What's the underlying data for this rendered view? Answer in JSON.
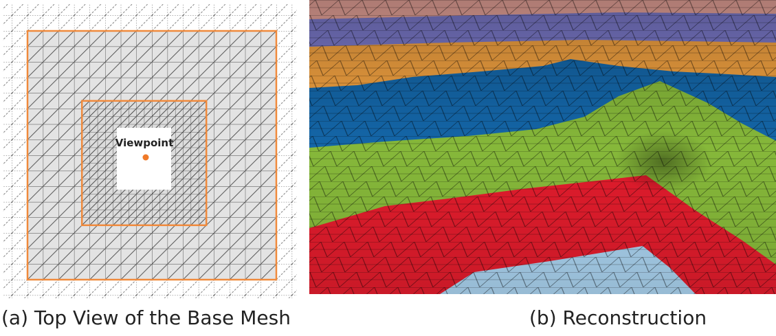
{
  "panel_a": {
    "marker_label": "Viewpoint",
    "caption": "(a) Top View of the Base Mesh"
  },
  "panel_b": {
    "caption": "(b) Reconstruction"
  }
}
